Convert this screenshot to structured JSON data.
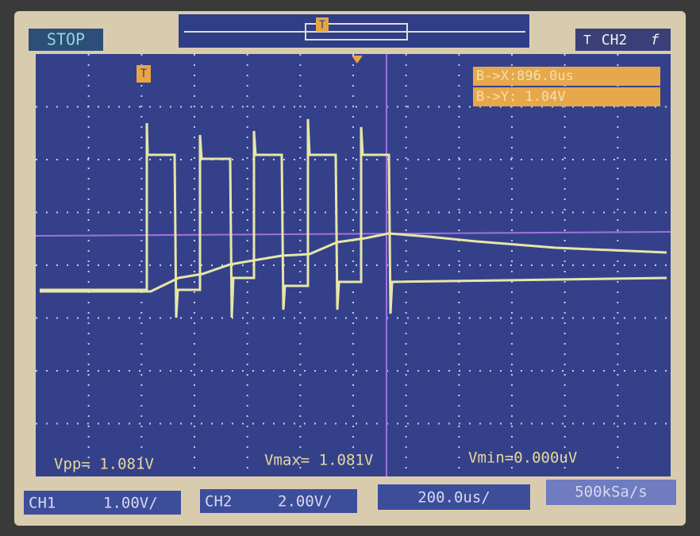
{
  "status": "STOP",
  "trigger_marker": "T",
  "trigger_info": {
    "marker": "T",
    "channel": "CH2",
    "edge": "f"
  },
  "cursors": [
    "B->X:896.0us",
    "B->Y: 1.04V"
  ],
  "measurements": [
    "Vpp= 1.081V",
    "Vmax= 1.081V",
    "Vmin=0.000uV"
  ],
  "channels": [
    {
      "name": "CH1",
      "scale": "1.00V/"
    },
    {
      "name": "CH2",
      "scale": "2.00V/"
    }
  ],
  "timebase": "200.0us/",
  "sample_rate": "500kSa/s"
}
